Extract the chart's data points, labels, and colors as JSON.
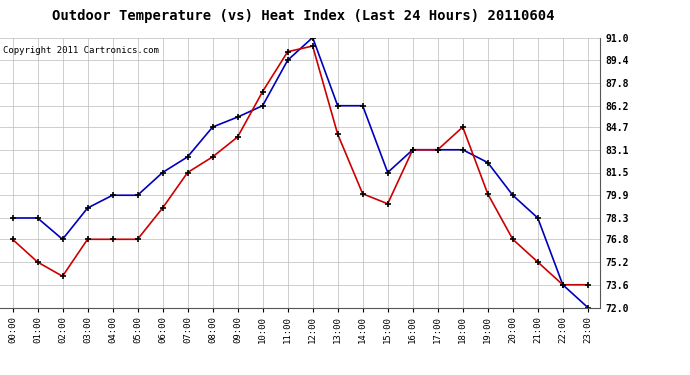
{
  "title": "Outdoor Temperature (vs) Heat Index (Last 24 Hours) 20110604",
  "copyright": "Copyright 2011 Cartronics.com",
  "hours": [
    "00:00",
    "01:00",
    "02:00",
    "03:00",
    "04:00",
    "05:00",
    "06:00",
    "07:00",
    "08:00",
    "09:00",
    "10:00",
    "11:00",
    "12:00",
    "13:00",
    "14:00",
    "15:00",
    "16:00",
    "17:00",
    "18:00",
    "19:00",
    "20:00",
    "21:00",
    "22:00",
    "23:00"
  ],
  "temp_blue": [
    78.3,
    78.3,
    76.8,
    79.0,
    79.9,
    79.9,
    81.5,
    82.6,
    84.7,
    85.4,
    86.2,
    89.4,
    91.0,
    86.2,
    86.2,
    81.5,
    83.1,
    83.1,
    83.1,
    82.2,
    79.9,
    78.3,
    73.6,
    72.0
  ],
  "heat_red": [
    76.8,
    75.2,
    74.2,
    76.8,
    76.8,
    76.8,
    79.0,
    81.5,
    82.6,
    84.0,
    87.2,
    90.0,
    90.4,
    84.2,
    80.0,
    79.3,
    83.1,
    83.1,
    84.7,
    80.0,
    76.8,
    75.2,
    73.6,
    73.6
  ],
  "ylim": [
    72.0,
    91.0
  ],
  "yticks": [
    72.0,
    73.6,
    75.2,
    76.8,
    78.3,
    79.9,
    81.5,
    83.1,
    84.7,
    86.2,
    87.8,
    89.4,
    91.0
  ],
  "blue_color": "#0000bb",
  "red_color": "#cc0000",
  "bg_color": "#ffffff",
  "grid_color": "#bbbbbb",
  "title_fontsize": 10,
  "copyright_fontsize": 6.5
}
